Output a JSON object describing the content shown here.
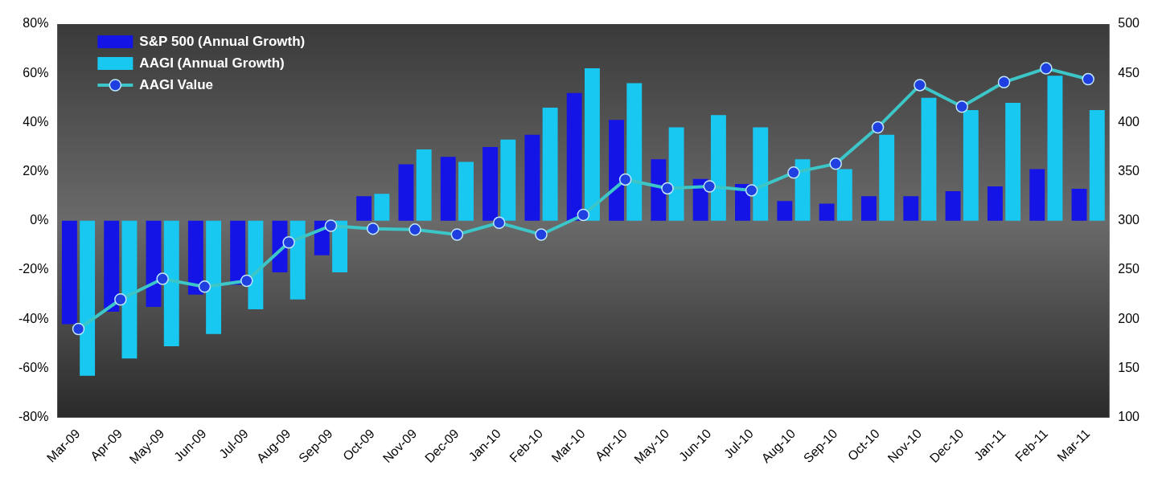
{
  "chart_data": {
    "type": "bar",
    "categories": [
      "Mar-09",
      "Apr-09",
      "May-09",
      "Jun-09",
      "Jul-09",
      "Aug-09",
      "Sep-09",
      "Oct-09",
      "Nov-09",
      "Dec-09",
      "Jan-10",
      "Feb-10",
      "Mar-10",
      "Apr-10",
      "May-10",
      "Jun-10",
      "Jul-10",
      "Aug-10",
      "Sep-10",
      "Oct-10",
      "Nov-10",
      "Dec-10",
      "Jan-11",
      "Feb-11",
      "Mar-11"
    ],
    "series": [
      {
        "name": "S&P 500 (Annual Growth)",
        "type": "bar",
        "color": "#1414e6",
        "values": [
          -42,
          -37,
          -35,
          -30,
          -26,
          -21,
          -14,
          10,
          23,
          26,
          30,
          35,
          52,
          41,
          25,
          17,
          15,
          8,
          7,
          10,
          10,
          12,
          14,
          21,
          13
        ]
      },
      {
        "name": "AAGI (Annual Growth)",
        "type": "bar",
        "color": "#19c8f0",
        "values": [
          -63,
          -56,
          -51,
          -46,
          -36,
          -32,
          -21,
          11,
          29,
          24,
          33,
          46,
          62,
          56,
          38,
          43,
          38,
          25,
          21,
          35,
          50,
          45,
          48,
          59,
          45
        ]
      },
      {
        "name": "AAGI Value",
        "type": "line",
        "color": "#3cc6c8",
        "marker": "circle",
        "axis": "y2",
        "values": [
          190,
          220,
          241,
          233,
          239,
          278,
          295,
          292,
          291,
          286,
          298,
          286,
          306,
          342,
          333,
          335,
          331,
          349,
          358,
          395,
          438,
          416,
          441,
          455,
          444
        ]
      }
    ],
    "ylim": [
      -80,
      80
    ],
    "yticks": [
      {
        "value": -80,
        "label": "-80%"
      },
      {
        "value": -60,
        "label": "-60%"
      },
      {
        "value": -40,
        "label": "-40%"
      },
      {
        "value": -20,
        "label": "-20%"
      },
      {
        "value": 0,
        "label": "0%"
      },
      {
        "value": 20,
        "label": "20%"
      },
      {
        "value": 40,
        "label": "40%"
      },
      {
        "value": 60,
        "label": "60%"
      },
      {
        "value": 80,
        "label": "80%"
      }
    ],
    "y2lim": [
      100,
      500
    ],
    "y2ticks": [
      100,
      150,
      200,
      250,
      300,
      350,
      400,
      450,
      500
    ],
    "legend": "upper left",
    "grid": false
  }
}
